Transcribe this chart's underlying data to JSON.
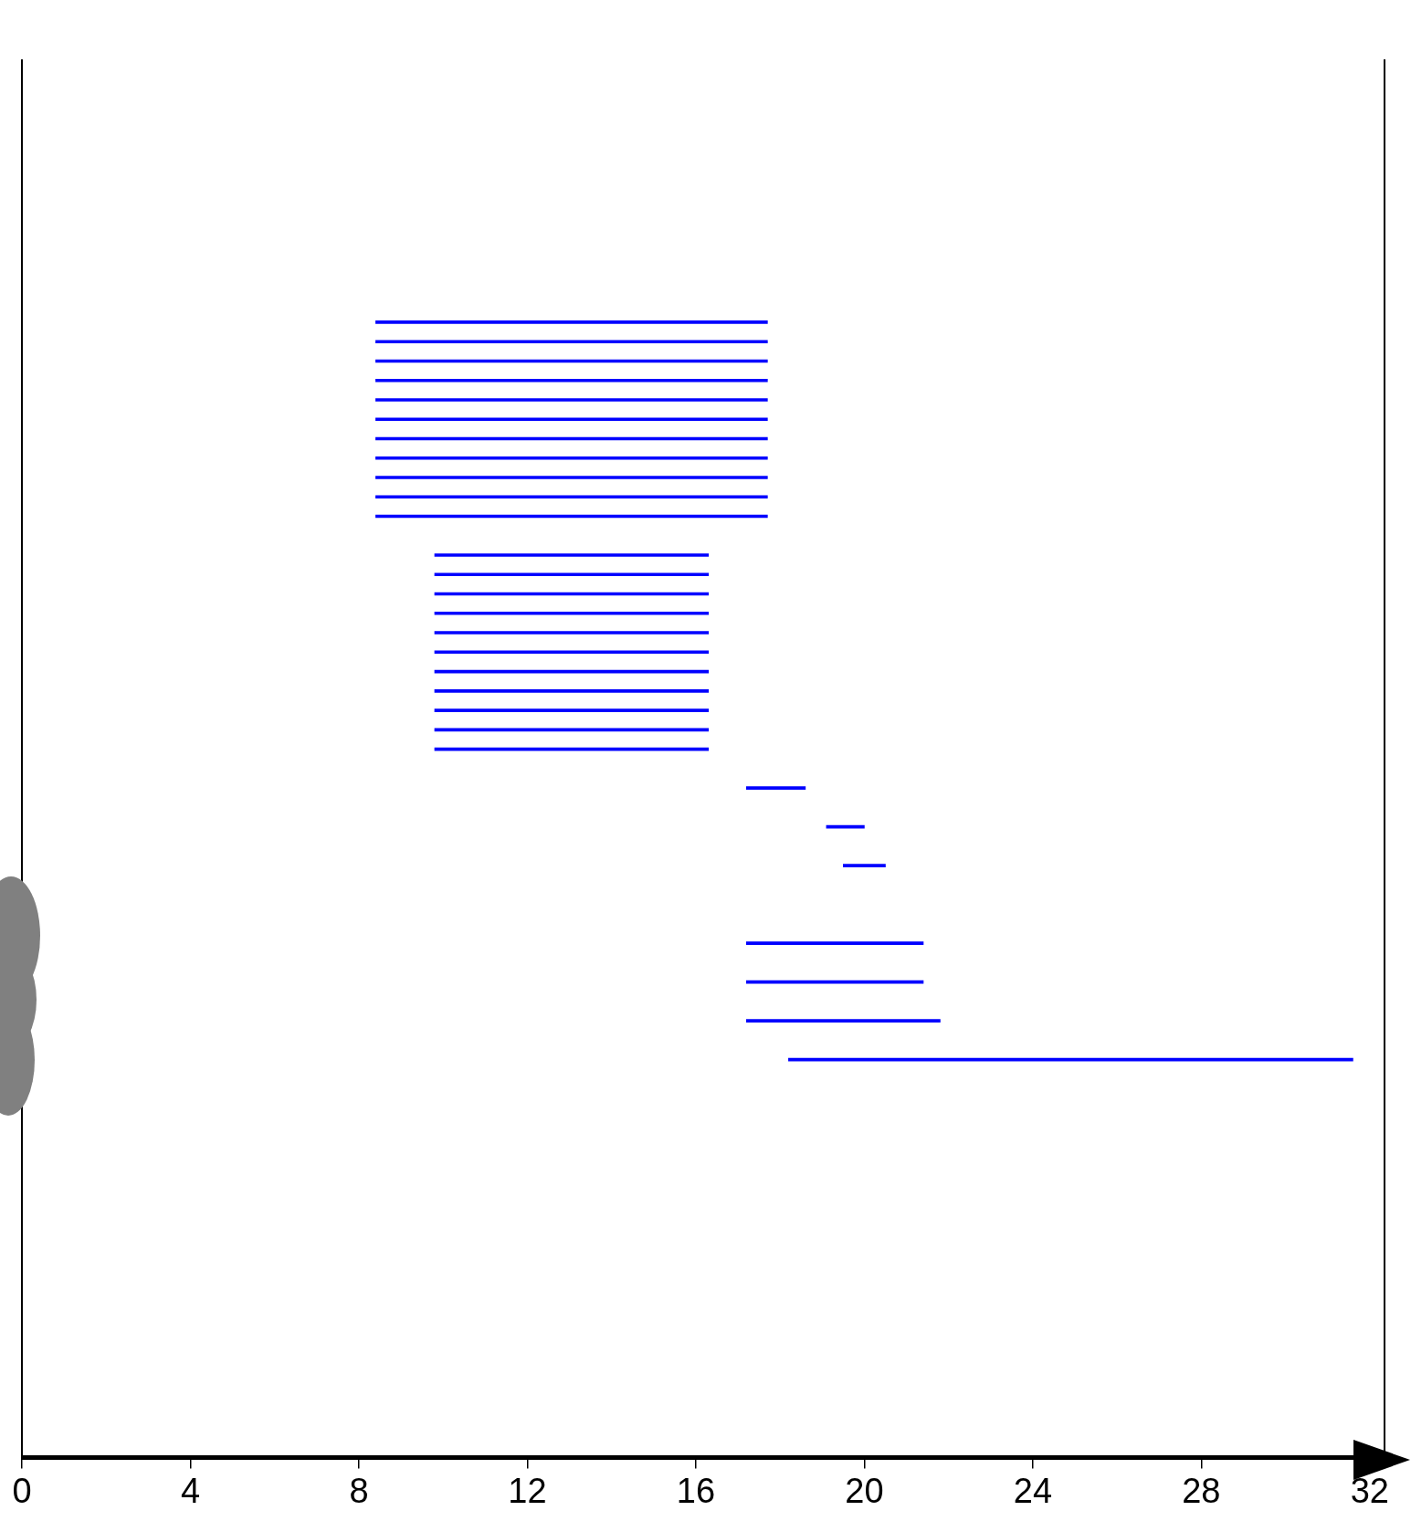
{
  "chart_data": {
    "type": "bar",
    "orientation": "horizontal",
    "categories": [
      null,
      null,
      null,
      null,
      null,
      null,
      null,
      null,
      null,
      null,
      null,
      null,
      null,
      null,
      null,
      null,
      null,
      null,
      null,
      null,
      null,
      null,
      null,
      null,
      null,
      null,
      null,
      null,
      null,
      null,
      null,
      null,
      null,
      null,
      null,
      null,
      null,
      null,
      null,
      null,
      null,
      null,
      null,
      null,
      null,
      null,
      null,
      null,
      null,
      null,
      null,
      null,
      null,
      null,
      null,
      null,
      null,
      null,
      null,
      null,
      null,
      null,
      null,
      null,
      null,
      null,
      null,
      null,
      null,
      null,
      null,
      null
    ],
    "base": [
      null,
      null,
      null,
      null,
      null,
      null,
      null,
      null,
      null,
      null,
      null,
      null,
      null,
      8.4,
      8.4,
      8.4,
      8.4,
      8.4,
      8.4,
      8.4,
      8.4,
      8.4,
      8.4,
      8.4,
      null,
      9.8,
      9.8,
      9.8,
      9.8,
      9.8,
      9.8,
      9.8,
      9.8,
      9.8,
      9.8,
      9.8,
      null,
      17.2,
      null,
      19.1,
      null,
      19.5,
      null,
      null,
      null,
      17.2,
      null,
      17.2,
      null,
      17.2,
      null,
      18.2,
      null,
      null,
      null,
      null,
      null,
      null,
      null,
      null,
      null,
      null,
      null,
      null,
      null,
      null,
      null,
      null,
      null,
      null,
      null,
      null
    ],
    "values": [
      null,
      null,
      null,
      null,
      null,
      null,
      null,
      null,
      null,
      null,
      null,
      null,
      null,
      9.3,
      9.3,
      9.3,
      9.3,
      9.3,
      9.3,
      9.3,
      9.3,
      9.3,
      9.3,
      9.3,
      null,
      6.5,
      6.5,
      6.5,
      6.5,
      6.5,
      6.5,
      6.5,
      6.5,
      6.5,
      6.5,
      6.5,
      null,
      1.4,
      null,
      0.9,
      null,
      1.0,
      null,
      null,
      null,
      4.2,
      null,
      4.2,
      null,
      4.6,
      null,
      13.4,
      null,
      null,
      null,
      null,
      null,
      null,
      null,
      null,
      null,
      null,
      null,
      null,
      null,
      null,
      null,
      null,
      null,
      null,
      null,
      null
    ],
    "color": "#0000ff",
    "xlim": [
      0,
      32.35
    ],
    "xticks": [
      0,
      4,
      8,
      12,
      16,
      20,
      24,
      28,
      32
    ],
    "grid": false,
    "legend": false,
    "tick_labels": "x"
  }
}
